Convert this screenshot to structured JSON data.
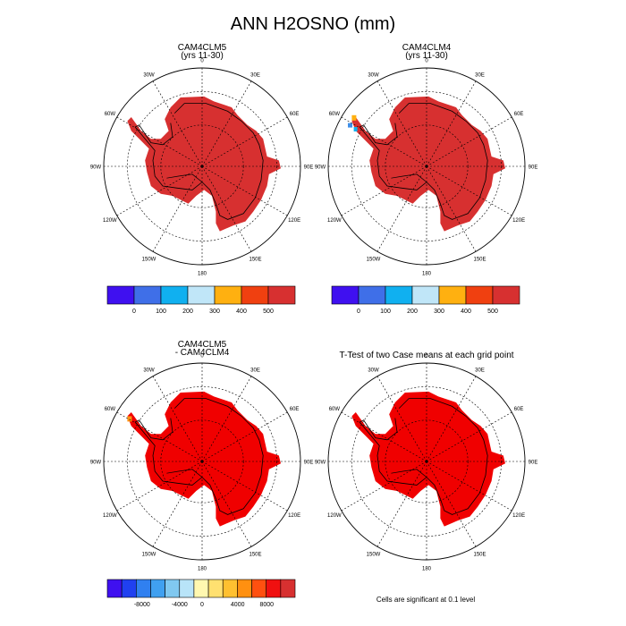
{
  "figure": {
    "title": "ANN H2OSNO (mm)"
  },
  "panels": [
    {
      "id": "p1",
      "title_line1": "CAM4CLM5",
      "title_line2": "(yrs 11-30)",
      "fill_color": "#d73030",
      "features": "none"
    },
    {
      "id": "p2",
      "title_line1": "CAM4CLM4",
      "title_line2": "(yrs 11-30)",
      "fill_color": "#d73030",
      "features": "peninsula-colored"
    },
    {
      "id": "p3",
      "title_line1": "CAM4CLM5",
      "title_line2": "- CAM4CLM4",
      "fill_color": "#f00000",
      "features": "peninsula-orange"
    },
    {
      "id": "p4",
      "title_line1": "T-Test of two Case means at each grid point",
      "title_line2": "",
      "fill_color": "#f00000",
      "features": "none"
    }
  ],
  "map_labels": {
    "lon": [
      "0",
      "30E",
      "60E",
      "90E",
      "120E",
      "150E",
      "180",
      "150W",
      "120W",
      "90W",
      "60W",
      "30W"
    ]
  },
  "colorbars": [
    {
      "id": "cb1",
      "colors": [
        "#3f10f0",
        "#3f6fe8",
        "#10b0f0",
        "#c0e6f8",
        "#ffb010",
        "#f04010",
        "#d73030"
      ],
      "labels": [
        "0",
        "100",
        "200",
        "300",
        "400",
        "500"
      ]
    },
    {
      "id": "cb2",
      "colors": [
        "#3f10f0",
        "#3f6fe8",
        "#10b0f0",
        "#c0e6f8",
        "#ffb010",
        "#f04010",
        "#d73030"
      ],
      "labels": [
        "0",
        "100",
        "200",
        "300",
        "400",
        "500"
      ]
    },
    {
      "id": "cb3",
      "colors": [
        "#3f10f0",
        "#2040f0",
        "#3080f0",
        "#40a0f0",
        "#80c8f0",
        "#b8e4f8",
        "#fff8b0",
        "#ffe070",
        "#ffc030",
        "#ff9010",
        "#ff5010",
        "#f01010",
        "#d73030"
      ],
      "labels": [
        "-8000",
        "-4000",
        "0",
        "4000",
        "8000"
      ]
    }
  ],
  "footnote": "Cells are significant at 0.1 level",
  "chart_data": [
    {
      "type": "map",
      "title": "CAM4CLM5 (yrs 11-30)",
      "projection": "south-polar-stereographic",
      "field": "H2OSNO",
      "units": "mm",
      "colorbar_levels": [
        0,
        100,
        200,
        300,
        400,
        500
      ],
      "dominant_value": ">500"
    },
    {
      "type": "map",
      "title": "CAM4CLM4 (yrs 11-30)",
      "projection": "south-polar-stereographic",
      "field": "H2OSNO",
      "units": "mm",
      "colorbar_levels": [
        0,
        100,
        200,
        300,
        400,
        500
      ],
      "dominant_value": ">500"
    },
    {
      "type": "map",
      "title": "CAM4CLM5 - CAM4CLM4",
      "projection": "south-polar-stereographic",
      "field": "H2OSNO difference",
      "units": "mm",
      "colorbar_label_values": [
        -8000,
        -4000,
        0,
        4000,
        8000
      ],
      "dominant_value": ">8000"
    },
    {
      "type": "map",
      "title": "T-Test of two Case means at each grid point",
      "projection": "south-polar-stereographic",
      "significance_level": 0.1
    }
  ]
}
